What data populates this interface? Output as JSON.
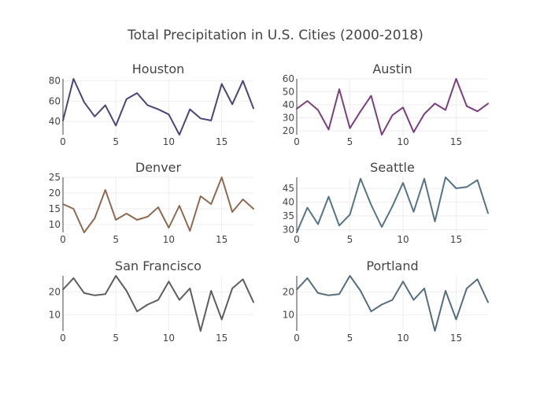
{
  "title": "Total Precipitation in U.S. Cities (2000-2018)",
  "chart_data": [
    {
      "type": "line",
      "title": "Houston",
      "color": "#4b4477",
      "x": [
        0,
        1,
        2,
        3,
        4,
        5,
        6,
        7,
        8,
        9,
        10,
        11,
        12,
        13,
        14,
        15,
        16,
        17,
        18
      ],
      "values": [
        41,
        82,
        59,
        45,
        56,
        36,
        62,
        68,
        56,
        52,
        47,
        27,
        52,
        43,
        41,
        77,
        57,
        80,
        53
      ],
      "ylim": [
        27,
        82
      ],
      "yticks": [
        40,
        60,
        80
      ],
      "xlim": [
        0,
        18
      ],
      "xticks": [
        0,
        5,
        10,
        15
      ]
    },
    {
      "type": "line",
      "title": "Austin",
      "color": "#7c3f7d",
      "x": [
        0,
        1,
        2,
        3,
        4,
        5,
        6,
        7,
        8,
        9,
        10,
        11,
        12,
        13,
        14,
        15,
        16,
        17,
        18
      ],
      "values": [
        37,
        43,
        36,
        21,
        52,
        22,
        35,
        47,
        17,
        32,
        38,
        19,
        33,
        41,
        36,
        60,
        39,
        35,
        41
      ],
      "ylim": [
        17,
        60
      ],
      "yticks": [
        20,
        30,
        40,
        50,
        60
      ],
      "xlim": [
        0,
        18
      ],
      "xticks": [
        0,
        5,
        10,
        15
      ]
    },
    {
      "type": "line",
      "title": "Denver",
      "color": "#8d6a50",
      "x": [
        0,
        1,
        2,
        3,
        4,
        5,
        6,
        7,
        8,
        9,
        10,
        11,
        12,
        13,
        14,
        15,
        16,
        17,
        18
      ],
      "values": [
        16.5,
        15,
        7.5,
        12,
        21,
        11.5,
        13.5,
        11.5,
        12.5,
        15.5,
        9,
        16,
        8,
        19,
        16.5,
        25,
        14,
        18,
        15
      ],
      "ylim": [
        7.5,
        25
      ],
      "yticks": [
        10,
        15,
        20,
        25
      ],
      "xlim": [
        0,
        18
      ],
      "xticks": [
        0,
        5,
        10,
        15
      ]
    },
    {
      "type": "line",
      "title": "Seattle",
      "color": "#567483",
      "x": [
        0,
        1,
        2,
        3,
        4,
        5,
        6,
        7,
        8,
        9,
        10,
        11,
        12,
        13,
        14,
        15,
        16,
        17,
        18
      ],
      "values": [
        29,
        38,
        32,
        42,
        31.5,
        35.5,
        48.5,
        39,
        31,
        38.5,
        47,
        36.5,
        48.5,
        33,
        49,
        45,
        45.5,
        48,
        36
      ],
      "ylim": [
        29,
        49
      ],
      "yticks": [
        30,
        35,
        40,
        45
      ],
      "xlim": [
        0,
        18
      ],
      "xticks": [
        0,
        5,
        10,
        15
      ]
    },
    {
      "type": "line",
      "title": "San Francisco",
      "color": "#5e5e5e",
      "x": [
        0,
        1,
        2,
        3,
        4,
        5,
        6,
        7,
        8,
        9,
        10,
        11,
        12,
        13,
        14,
        15,
        16,
        17,
        18
      ],
      "values": [
        21,
        26,
        19.5,
        18.5,
        19,
        27,
        20.5,
        11.5,
        14.5,
        16.5,
        24.5,
        16.5,
        21.5,
        3,
        20.5,
        8,
        21.5,
        25.5,
        15.5
      ],
      "ylim": [
        3,
        27
      ],
      "yticks": [
        10,
        20
      ],
      "xlim": [
        0,
        18
      ],
      "xticks": [
        0,
        5,
        10,
        15
      ]
    },
    {
      "type": "line",
      "title": "Portland",
      "color": "#566e7c",
      "x": [
        0,
        1,
        2,
        3,
        4,
        5,
        6,
        7,
        8,
        9,
        10,
        11,
        12,
        13,
        14,
        15,
        16,
        17,
        18
      ],
      "values": [
        21,
        26,
        19.5,
        18.5,
        19,
        27,
        20.5,
        11.5,
        14.5,
        16.5,
        24.5,
        16.5,
        21.5,
        3,
        20.5,
        8,
        21.5,
        25.5,
        15.5
      ],
      "ylim": [
        3,
        27
      ],
      "yticks": [
        10,
        20
      ],
      "xlim": [
        0,
        18
      ],
      "xticks": [
        0,
        5,
        10,
        15
      ]
    }
  ]
}
